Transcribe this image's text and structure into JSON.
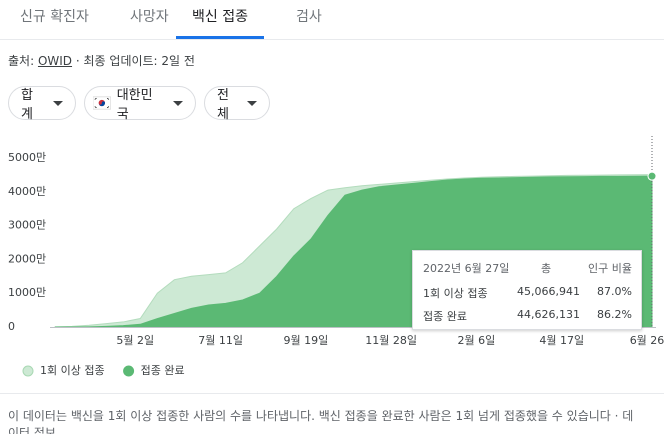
{
  "tabs": [
    "신규 확진자",
    "사망자",
    "백신 접종",
    "검사"
  ],
  "active_tab": 2,
  "source": {
    "label": "출처:",
    "link": "OWID",
    "updated": "· 최종 업데이트: 2일 전"
  },
  "filters": [
    "합계",
    "대한민국",
    "전체"
  ],
  "chart_data": {
    "type": "area",
    "categories": [
      null,
      null,
      null,
      null,
      null,
      "5월 2일",
      null,
      null,
      null,
      null,
      "7월 11일",
      null,
      null,
      null,
      null,
      "9월 19일",
      null,
      null,
      null,
      null,
      "11월 28일",
      null,
      null,
      null,
      null,
      "2월 6일",
      null,
      null,
      null,
      null,
      "4월 17일",
      null,
      null,
      null,
      null,
      "6월 26"
    ],
    "series": [
      {
        "name": "1회 이상 접종",
        "color": "#cde9d4",
        "values": [
          5,
          20,
          50,
          100,
          150,
          250,
          1000,
          1400,
          1500,
          1550,
          1600,
          1900,
          2400,
          2900,
          3500,
          3800,
          4050,
          4120,
          4180,
          4220,
          4260,
          4300,
          4340,
          4380,
          4410,
          4430,
          4445,
          4455,
          4465,
          4475,
          4485,
          4490,
          4495,
          4500,
          4504,
          4507
        ]
      },
      {
        "name": "접종 완료",
        "color": "#5bb974",
        "values": [
          0,
          0,
          5,
          20,
          40,
          80,
          250,
          400,
          550,
          650,
          700,
          800,
          1000,
          1500,
          2100,
          2600,
          3300,
          3900,
          4050,
          4150,
          4200,
          4250,
          4300,
          4350,
          4380,
          4400,
          4410,
          4420,
          4430,
          4440,
          4445,
          4450,
          4455,
          4458,
          4460,
          4463
        ]
      }
    ],
    "ylim": [
      0,
      5000
    ],
    "yticks": [
      0,
      {
        "value": 1000,
        "label": "1000만"
      },
      {
        "value": 2000,
        "label": "2000만"
      },
      {
        "value": 3000,
        "label": "3000만"
      },
      {
        "value": 4000,
        "label": "4000만"
      },
      {
        "value": 5000,
        "label": "5000만"
      }
    ],
    "grid": false
  },
  "tooltip": {
    "date": "2022년 6월 27일",
    "headers": [
      "총",
      "인구 비율"
    ],
    "rows": [
      [
        "1회 이상 접종",
        "45,066,941",
        "87.0%"
      ],
      [
        "접종 완료",
        "44,626,131",
        "86.2%"
      ]
    ]
  },
  "footer": {
    "text": "이 데이터는 백신을 1회 이상 접종한 사람의 수를 나타냅니다. 백신 접종을 완료한 사람은 1회 넘게 접종했을 수 있습니다",
    "link": "데이터 정보"
  }
}
